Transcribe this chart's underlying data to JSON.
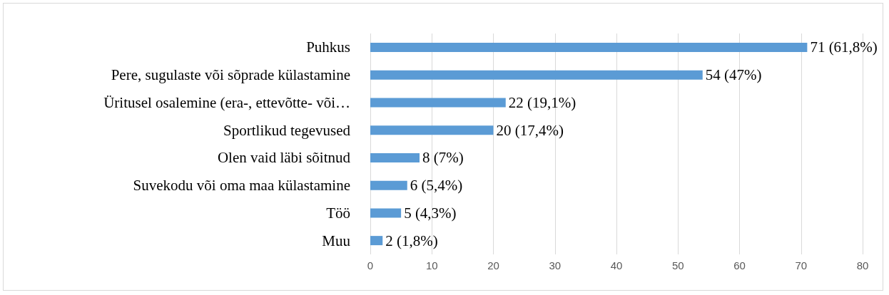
{
  "chart_data": {
    "type": "bar",
    "orientation": "horizontal",
    "categories": [
      "Puhkus",
      "Pere, sugulaste või sõprade külastamine",
      "Üritusel osalemine (era-, ettevõtte- või…",
      "Sportlikud tegevused",
      "Olen vaid läbi sõitnud",
      "Suvekodu või oma maa külastamine",
      "Töö",
      "Muu"
    ],
    "values": [
      71,
      54,
      22,
      20,
      8,
      6,
      5,
      2
    ],
    "value_labels": [
      "71 (61,8%)",
      "54 (47%)",
      "22 (19,1%)",
      "20 (17,4%)",
      "8 (7%)",
      "6 (5,4%)",
      "5 (4,3%)",
      "2 (1,8%)"
    ],
    "color": "#5b9bd5",
    "xlim": [
      0,
      80
    ],
    "xticks": [
      0,
      10,
      20,
      30,
      40,
      50,
      60,
      70,
      80
    ],
    "grid": "x"
  }
}
